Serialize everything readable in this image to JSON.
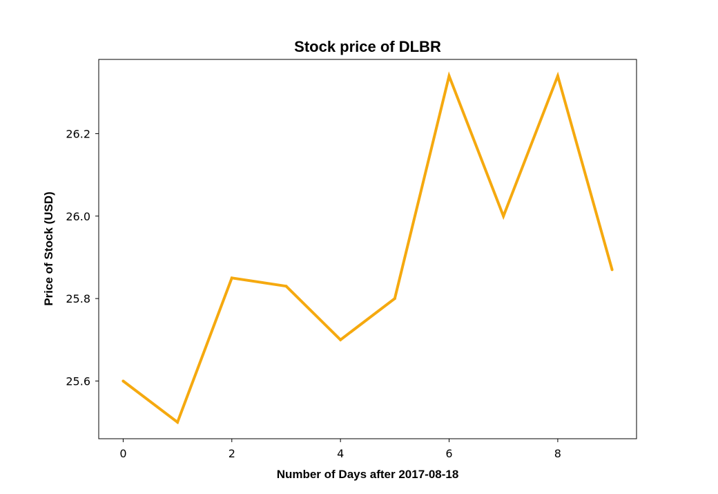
{
  "chart_data": {
    "type": "line",
    "title": "Stock price of DLBR",
    "xlabel": "Number of Days after 2017-08-18",
    "ylabel": "Price of Stock (USD)",
    "x": [
      0,
      1,
      2,
      3,
      4,
      5,
      6,
      7,
      8,
      9
    ],
    "series": [
      {
        "values": [
          25.6,
          25.5,
          25.85,
          25.83,
          25.7,
          25.8,
          26.34,
          26.0,
          26.34,
          25.87
        ]
      }
    ],
    "xlim": [
      -0.45,
      9.45
    ],
    "ylim": [
      25.46,
      26.38
    ],
    "xticks": [
      0,
      2,
      4,
      6,
      8
    ],
    "xtick_labels": [
      "0",
      "2",
      "4",
      "6",
      "8"
    ],
    "yticks": [
      25.6,
      25.8,
      26.0,
      26.2
    ],
    "ytick_labels": [
      "25.6",
      "25.8",
      "26.0",
      "26.2"
    ],
    "grid": false,
    "line_color": "#f5a90f"
  }
}
